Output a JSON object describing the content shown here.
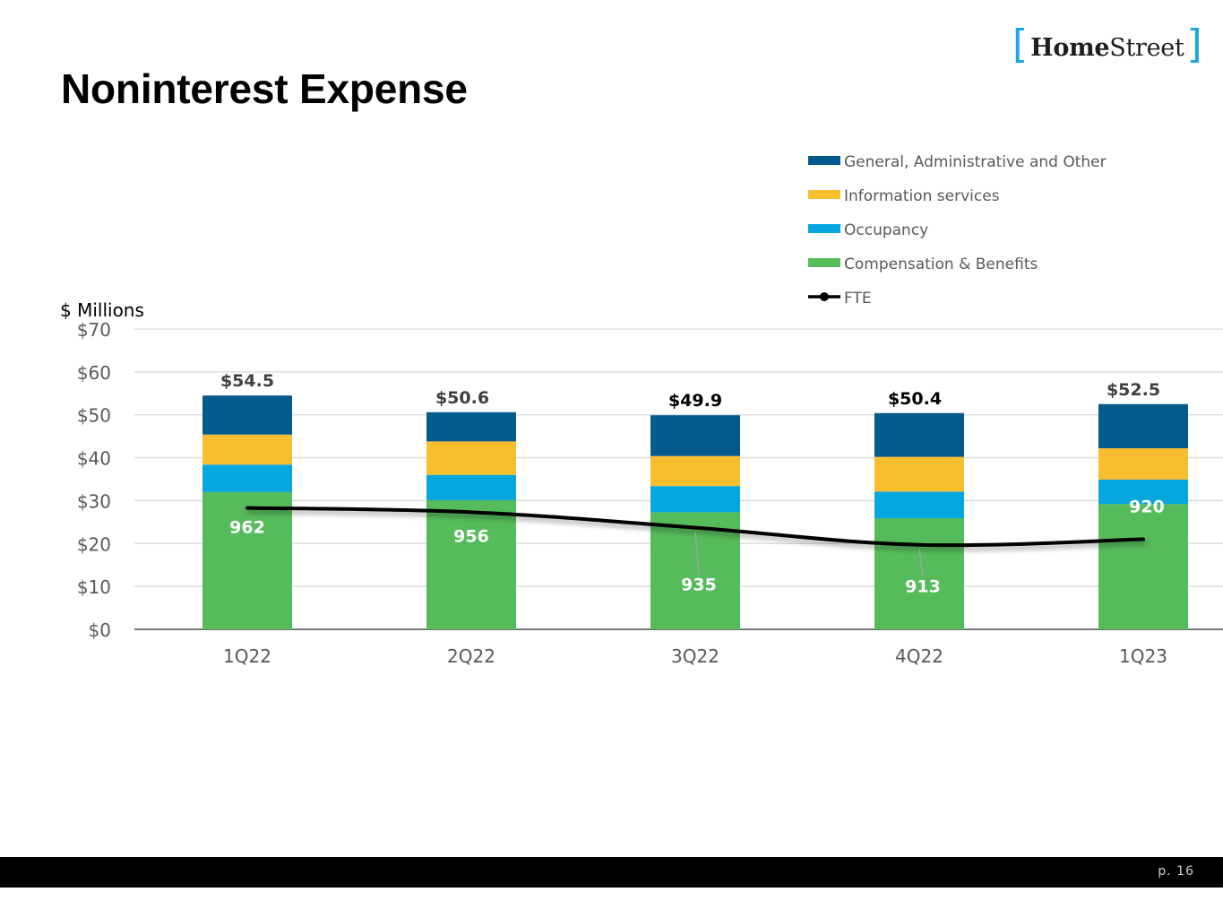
{
  "slide": {
    "title": "Noninterest Expense",
    "logo": {
      "bold": "Home",
      "regular": "Street"
    },
    "page_label": "p. 16"
  },
  "colors": {
    "general_admin": "#035a8c",
    "info_services": "#f8be30",
    "occupancy": "#06a6de",
    "compensation": "#56bb5b",
    "fte_line": "#000000",
    "grid": "#d9d9d9",
    "axis_text": "#595959",
    "total_label": "#404040",
    "fte_label": "#ffffff"
  },
  "chart_data": {
    "type": "bar",
    "stacked": true,
    "title": "",
    "ylabel": "$ Millions",
    "xlabel": "",
    "ylim": [
      0,
      70
    ],
    "y_ticks": [
      0,
      10,
      20,
      30,
      40,
      50,
      60,
      70
    ],
    "y_tick_labels": [
      "$0",
      "$10",
      "$20",
      "$30",
      "$40",
      "$50",
      "$60",
      "$70"
    ],
    "categories": [
      "1Q22",
      "2Q22",
      "3Q22",
      "4Q22",
      "1Q23"
    ],
    "series": [
      {
        "name": "Compensation & Benefits",
        "color_key": "compensation",
        "values": [
          32.0,
          30.1,
          27.3,
          25.9,
          29.2
        ]
      },
      {
        "name": "Occupancy",
        "color_key": "occupancy",
        "values": [
          6.4,
          5.9,
          6.1,
          6.2,
          5.7
        ]
      },
      {
        "name": "Information services",
        "color_key": "info_services",
        "values": [
          7.0,
          7.8,
          7.0,
          8.1,
          7.3
        ]
      },
      {
        "name": "General, Administrative and Other",
        "color_key": "general_admin",
        "values": [
          9.1,
          6.8,
          9.5,
          10.2,
          10.3
        ]
      }
    ],
    "totals": [
      54.5,
      50.6,
      49.9,
      50.4,
      52.5
    ],
    "total_labels": [
      "$54.5",
      "$50.6",
      "$49.9",
      "$50.4",
      "$52.5"
    ],
    "fte": {
      "name": "FTE",
      "values": [
        962,
        956,
        935,
        913,
        920
      ],
      "labels": [
        "962",
        "956",
        "935",
        "913",
        "920"
      ],
      "plotted_on_primary_axis": [
        28.3,
        27.3,
        23.7,
        19.7,
        21.0
      ]
    },
    "legend": [
      {
        "label": "General, Administrative and Other",
        "kind": "bar",
        "color_key": "general_admin"
      },
      {
        "label": "Information services",
        "kind": "bar",
        "color_key": "info_services"
      },
      {
        "label": "Occupancy",
        "kind": "bar",
        "color_key": "occupancy"
      },
      {
        "label": "Compensation & Benefits",
        "kind": "bar",
        "color_key": "compensation"
      },
      {
        "label": "FTE",
        "kind": "line",
        "color_key": "fte_line"
      }
    ],
    "legend_position": "top-right",
    "grid": true
  }
}
